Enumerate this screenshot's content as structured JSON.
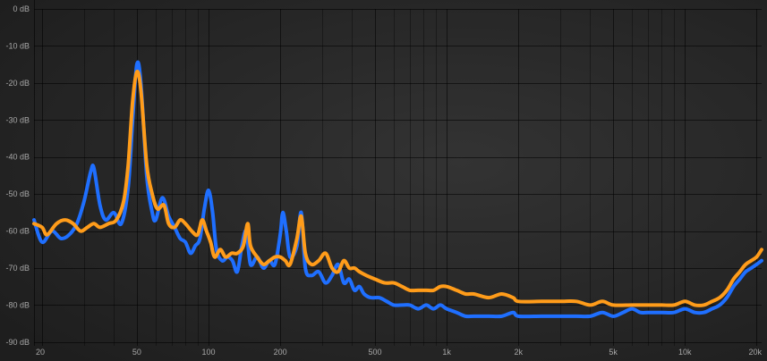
{
  "chart_data": {
    "type": "line",
    "title": "",
    "xlabel": "",
    "ylabel": "",
    "x_scale": "log",
    "xlim": [
      18.5,
      21000
    ],
    "ylim": [
      -91,
      0
    ],
    "grid": true,
    "legend": "none",
    "y_ticks": [
      {
        "value": 0,
        "label": "0 dB"
      },
      {
        "value": -10,
        "label": "-10 dB"
      },
      {
        "value": -20,
        "label": "-20 dB"
      },
      {
        "value": -30,
        "label": "-30 dB"
      },
      {
        "value": -40,
        "label": "-40 dB"
      },
      {
        "value": -50,
        "label": "-50 dB"
      },
      {
        "value": -60,
        "label": "-60 dB"
      },
      {
        "value": -70,
        "label": "-70 dB"
      },
      {
        "value": -80,
        "label": "-80 dB"
      },
      {
        "value": -90,
        "label": "-90 dB"
      }
    ],
    "x_ticks": [
      {
        "value": 20,
        "label": "20"
      },
      {
        "value": 50,
        "label": "50"
      },
      {
        "value": 100,
        "label": "100"
      },
      {
        "value": 200,
        "label": "200"
      },
      {
        "value": 500,
        "label": "500"
      },
      {
        "value": 1000,
        "label": "1k"
      },
      {
        "value": 2000,
        "label": "2k"
      },
      {
        "value": 5000,
        "label": "5k"
      },
      {
        "value": 10000,
        "label": "10k"
      },
      {
        "value": 20000,
        "label": "20k"
      }
    ],
    "x_minor_grid": [
      30,
      40,
      60,
      70,
      80,
      90,
      300,
      400,
      600,
      700,
      800,
      900,
      3000,
      4000,
      6000,
      7000,
      8000,
      9000
    ],
    "series": [
      {
        "color": "#1f6fff",
        "points": [
          [
            18.5,
            -57
          ],
          [
            20,
            -63
          ],
          [
            22,
            -60
          ],
          [
            24,
            -62
          ],
          [
            26,
            -61
          ],
          [
            28,
            -58
          ],
          [
            30,
            -52
          ],
          [
            32,
            -44
          ],
          [
            33,
            -43
          ],
          [
            35,
            -53
          ],
          [
            37,
            -57
          ],
          [
            40,
            -55
          ],
          [
            43,
            -58
          ],
          [
            46,
            -48
          ],
          [
            48,
            -30
          ],
          [
            50,
            -15
          ],
          [
            52,
            -20
          ],
          [
            55,
            -45
          ],
          [
            58,
            -55
          ],
          [
            60,
            -57
          ],
          [
            64,
            -51
          ],
          [
            68,
            -56
          ],
          [
            72,
            -59
          ],
          [
            76,
            -62
          ],
          [
            80,
            -63
          ],
          [
            84,
            -66
          ],
          [
            88,
            -64
          ],
          [
            92,
            -62
          ],
          [
            96,
            -54
          ],
          [
            100,
            -49
          ],
          [
            104,
            -55
          ],
          [
            108,
            -65
          ],
          [
            114,
            -68
          ],
          [
            120,
            -67
          ],
          [
            126,
            -68
          ],
          [
            132,
            -71
          ],
          [
            138,
            -64
          ],
          [
            144,
            -60
          ],
          [
            150,
            -69
          ],
          [
            160,
            -67
          ],
          [
            170,
            -70
          ],
          [
            180,
            -68
          ],
          [
            190,
            -69
          ],
          [
            200,
            -61
          ],
          [
            205,
            -55
          ],
          [
            212,
            -60
          ],
          [
            220,
            -67
          ],
          [
            235,
            -64
          ],
          [
            245,
            -55
          ],
          [
            255,
            -70
          ],
          [
            270,
            -72
          ],
          [
            290,
            -71
          ],
          [
            310,
            -74
          ],
          [
            330,
            -72
          ],
          [
            350,
            -69
          ],
          [
            370,
            -74
          ],
          [
            390,
            -73
          ],
          [
            410,
            -76
          ],
          [
            430,
            -75
          ],
          [
            450,
            -77
          ],
          [
            480,
            -78
          ],
          [
            520,
            -78
          ],
          [
            560,
            -79
          ],
          [
            600,
            -80
          ],
          [
            650,
            -80
          ],
          [
            700,
            -80
          ],
          [
            760,
            -81
          ],
          [
            820,
            -80
          ],
          [
            880,
            -81
          ],
          [
            940,
            -80
          ],
          [
            1000,
            -81
          ],
          [
            1100,
            -82
          ],
          [
            1200,
            -83
          ],
          [
            1300,
            -83
          ],
          [
            1500,
            -83
          ],
          [
            1700,
            -83
          ],
          [
            1900,
            -82
          ],
          [
            2000,
            -83
          ],
          [
            2500,
            -83
          ],
          [
            3000,
            -83
          ],
          [
            3500,
            -83
          ],
          [
            4000,
            -83
          ],
          [
            4500,
            -82
          ],
          [
            5000,
            -83
          ],
          [
            5500,
            -82
          ],
          [
            6000,
            -81
          ],
          [
            6500,
            -82
          ],
          [
            7000,
            -82
          ],
          [
            8000,
            -82
          ],
          [
            9000,
            -82
          ],
          [
            10000,
            -81
          ],
          [
            11000,
            -82
          ],
          [
            12000,
            -82
          ],
          [
            13000,
            -81
          ],
          [
            14000,
            -80
          ],
          [
            15000,
            -78
          ],
          [
            16000,
            -75
          ],
          [
            17000,
            -73
          ],
          [
            18000,
            -71
          ],
          [
            19000,
            -70
          ],
          [
            20000,
            -69
          ],
          [
            21000,
            -68
          ]
        ]
      },
      {
        "color": "#ff9c1a",
        "points": [
          [
            18.5,
            -58
          ],
          [
            20,
            -59
          ],
          [
            21,
            -61
          ],
          [
            23,
            -58
          ],
          [
            25,
            -57
          ],
          [
            27,
            -58
          ],
          [
            29,
            -60
          ],
          [
            31,
            -59
          ],
          [
            33,
            -58
          ],
          [
            35,
            -59
          ],
          [
            38,
            -58
          ],
          [
            41,
            -57
          ],
          [
            44,
            -52
          ],
          [
            46,
            -42
          ],
          [
            48,
            -25
          ],
          [
            50,
            -17
          ],
          [
            52,
            -22
          ],
          [
            55,
            -42
          ],
          [
            58,
            -50
          ],
          [
            61,
            -54
          ],
          [
            65,
            -53
          ],
          [
            68,
            -58
          ],
          [
            72,
            -59
          ],
          [
            76,
            -57
          ],
          [
            80,
            -58
          ],
          [
            85,
            -60
          ],
          [
            90,
            -61
          ],
          [
            94,
            -57
          ],
          [
            98,
            -60
          ],
          [
            102,
            -63
          ],
          [
            106,
            -67
          ],
          [
            112,
            -65
          ],
          [
            118,
            -67
          ],
          [
            125,
            -66
          ],
          [
            132,
            -66
          ],
          [
            140,
            -64
          ],
          [
            146,
            -58
          ],
          [
            150,
            -64
          ],
          [
            160,
            -67
          ],
          [
            170,
            -69
          ],
          [
            180,
            -68
          ],
          [
            190,
            -67
          ],
          [
            200,
            -67
          ],
          [
            210,
            -68
          ],
          [
            220,
            -69
          ],
          [
            235,
            -62
          ],
          [
            245,
            -56
          ],
          [
            255,
            -66
          ],
          [
            270,
            -69
          ],
          [
            290,
            -68
          ],
          [
            310,
            -66
          ],
          [
            330,
            -70
          ],
          [
            350,
            -71
          ],
          [
            370,
            -68
          ],
          [
            390,
            -70
          ],
          [
            410,
            -70
          ],
          [
            430,
            -71
          ],
          [
            460,
            -72
          ],
          [
            500,
            -73
          ],
          [
            550,
            -74
          ],
          [
            600,
            -74
          ],
          [
            650,
            -75
          ],
          [
            700,
            -76
          ],
          [
            760,
            -76
          ],
          [
            820,
            -76
          ],
          [
            880,
            -76
          ],
          [
            940,
            -75
          ],
          [
            1000,
            -75
          ],
          [
            1100,
            -76
          ],
          [
            1200,
            -77
          ],
          [
            1300,
            -77
          ],
          [
            1500,
            -78
          ],
          [
            1700,
            -77
          ],
          [
            1900,
            -78
          ],
          [
            2000,
            -79
          ],
          [
            2500,
            -79
          ],
          [
            3000,
            -79
          ],
          [
            3500,
            -79
          ],
          [
            4000,
            -80
          ],
          [
            4500,
            -79
          ],
          [
            5000,
            -80
          ],
          [
            6000,
            -80
          ],
          [
            7000,
            -80
          ],
          [
            8000,
            -80
          ],
          [
            9000,
            -80
          ],
          [
            10000,
            -79
          ],
          [
            11000,
            -80
          ],
          [
            12000,
            -80
          ],
          [
            13000,
            -79
          ],
          [
            14000,
            -78
          ],
          [
            15000,
            -76
          ],
          [
            16000,
            -73
          ],
          [
            17000,
            -71
          ],
          [
            18000,
            -69
          ],
          [
            19000,
            -68
          ],
          [
            20000,
            -67
          ],
          [
            21000,
            -65
          ]
        ]
      }
    ]
  }
}
